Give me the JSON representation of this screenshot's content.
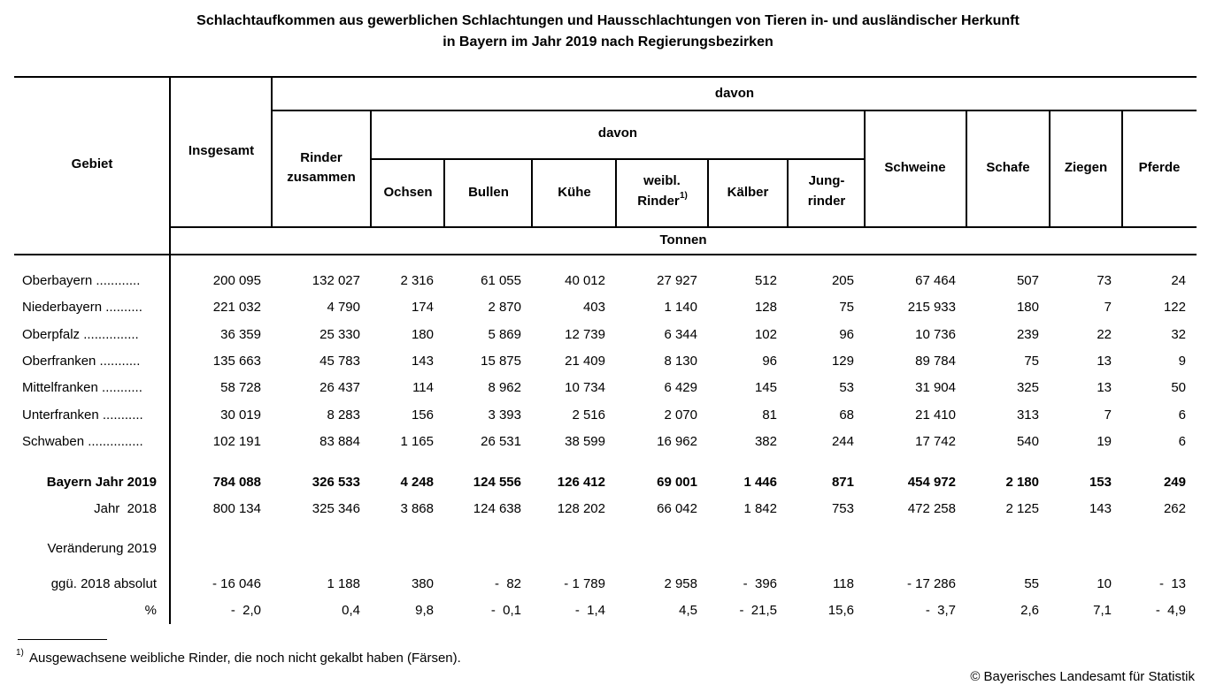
{
  "title": [
    "Schlachtaufkommen aus gewerblichen Schlachtungen und Hausschlachtungen von Tieren in- und ausländischer Herkunft",
    "in Bayern im Jahr 2019 nach Regierungsbezirken"
  ],
  "header": {
    "gebiet": "Gebiet",
    "insgesamt": "Insgesamt",
    "davon_top": "davon",
    "rinder_zusammen": [
      "Rinder",
      "zusammen"
    ],
    "davon_rinder": "davon",
    "ochsen": "Ochsen",
    "bullen": "Bullen",
    "kuehe": "Kühe",
    "weibl_rinder": [
      "weibl.",
      "Rinder"
    ],
    "weibl_rinder_note": "1)",
    "kaelber": "Kälber",
    "jungrinder": [
      "Jung-",
      "rinder"
    ],
    "schweine": "Schweine",
    "schafe": "Schafe",
    "ziegen": "Ziegen",
    "pferde": "Pferde",
    "unit": "Tonnen"
  },
  "rows": [
    {
      "label": "Oberbayern ............",
      "values": [
        "200 095",
        "132 027",
        "2 316",
        "61 055",
        "40 012",
        "27 927",
        "512",
        "205",
        "67 464",
        "507",
        "73",
        "24"
      ]
    },
    {
      "label": "Niederbayern ..........",
      "values": [
        "221 032",
        "4 790",
        "174",
        "2 870",
        "403",
        "1 140",
        "128",
        "75",
        "215 933",
        "180",
        "7",
        "122"
      ]
    },
    {
      "label": "Oberpfalz ...............",
      "values": [
        "36 359",
        "25 330",
        "180",
        "5 869",
        "12 739",
        "6 344",
        "102",
        "96",
        "10 736",
        "239",
        "22",
        "32"
      ]
    },
    {
      "label": "Oberfranken ...........",
      "values": [
        "135 663",
        "45 783",
        "143",
        "15 875",
        "21 409",
        "8 130",
        "96",
        "129",
        "89 784",
        "75",
        "13",
        "9"
      ]
    },
    {
      "label": "Mittelfranken ...........",
      "values": [
        "58 728",
        "26 437",
        "114",
        "8 962",
        "10 734",
        "6 429",
        "145",
        "53",
        "31 904",
        "325",
        "13",
        "50"
      ]
    },
    {
      "label": "Unterfranken ...........",
      "values": [
        "30 019",
        "8 283",
        "156",
        "3 393",
        "2 516",
        "2 070",
        "81",
        "68",
        "21 410",
        "313",
        "7",
        "6"
      ]
    },
    {
      "label": "Schwaben ...............",
      "values": [
        "102 191",
        "83 884",
        "1 165",
        "26 531",
        "38 599",
        "16 962",
        "382",
        "244",
        "17 742",
        "540",
        "19",
        "6"
      ]
    },
    {
      "label": "Bayern Jahr 2019",
      "values": [
        "784 088",
        "326 533",
        "4 248",
        "124 556",
        "126 412",
        "69 001",
        "1 446",
        "871",
        "454 972",
        "2 180",
        "153",
        "249"
      ]
    },
    {
      "label": "Jahr  2018",
      "values": [
        "800 134",
        "325 346",
        "3 868",
        "124 638",
        "128 202",
        "66 042",
        "1 842",
        "753",
        "472 258",
        "2 125",
        "143",
        "262"
      ]
    },
    {
      "label": "Veränderung 2019"
    },
    {
      "label": "ggü. 2018 absolut",
      "values": [
        "- 16 046",
        "1 188",
        "380",
        "-  82",
        "- 1 789",
        "2 958",
        "-  396",
        "118",
        "- 17 286",
        "55",
        "10",
        "-  13"
      ]
    },
    {
      "label": "%",
      "values": [
        "-  2,0",
        "0,4",
        "9,8",
        "-  0,1",
        "-  1,4",
        "4,5",
        "-  21,5",
        "15,6",
        "-  3,7",
        "2,6",
        "7,1",
        "-  4,9"
      ]
    }
  ],
  "footnote": {
    "marker": "1)",
    "text": "Ausgewachsene weibliche Rinder, die noch nicht gekalbt haben (Färsen)."
  },
  "copyright": "© Bayerisches Landesamt für Statistik"
}
